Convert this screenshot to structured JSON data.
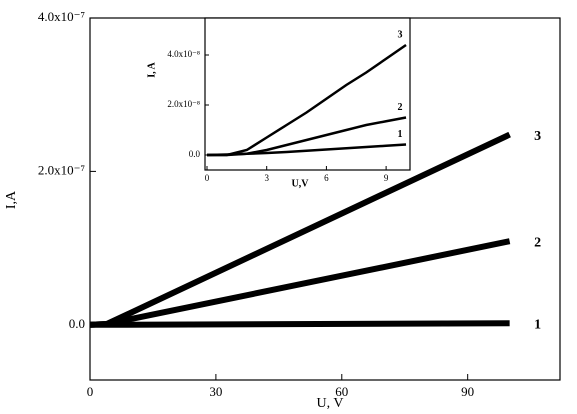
{
  "chart_data": [
    {
      "type": "line",
      "xlabel": "U, V",
      "ylabel": "I,A",
      "x": [
        0,
        4,
        100
      ],
      "series": [
        {
          "name": "3",
          "color": "#000000",
          "values": [
            0,
            1e-09,
            2.48e-07
          ]
        },
        {
          "name": "2",
          "color": "#000000",
          "values": [
            0,
            1e-09,
            1.09e-07
          ]
        },
        {
          "name": "1",
          "color": "#000000",
          "values": [
            0,
            0,
            2e-09
          ]
        }
      ],
      "xlim": [
        0,
        112
      ],
      "xticks": [
        0,
        30,
        60,
        90
      ],
      "ylim": [
        -7.2e-08,
        4e-07
      ],
      "yticks": [
        {
          "value": 0,
          "label": "0.0"
        },
        {
          "value": 2e-07,
          "label": "2.0x10⁻⁷"
        },
        {
          "value": 4e-07,
          "label": "4.0x10⁻⁷"
        }
      ]
    },
    {
      "type": "line",
      "xlabel": "U,V",
      "ylabel": "I, A",
      "x": [
        0,
        1,
        2,
        3,
        4,
        5,
        6,
        7,
        8,
        9,
        10
      ],
      "series": [
        {
          "name": "3",
          "color": "#000000",
          "values": [
            0,
            0,
            2e-09,
            7e-09,
            1.2e-08,
            1.7e-08,
            2.25e-08,
            2.8e-08,
            3.3e-08,
            3.85e-08,
            4.4e-08
          ]
        },
        {
          "name": "2",
          "color": "#000000",
          "values": [
            0,
            0,
            5e-10,
            2e-09,
            4e-09,
            6e-09,
            8e-09,
            1e-08,
            1.2e-08,
            1.35e-08,
            1.5e-08
          ]
        },
        {
          "name": "1",
          "color": "#000000",
          "values": [
            0,
            2e-10,
            5e-10,
            8e-10,
            1.2e-09,
            1.7e-09,
            2.2e-09,
            2.7e-09,
            3.2e-09,
            3.7e-09,
            4.2e-09
          ]
        }
      ],
      "xlim": [
        -0.1,
        10.2
      ],
      "xticks": [
        0,
        3,
        6,
        9
      ],
      "ylim": [
        -6e-09,
        5.48e-08
      ],
      "yticks": [
        {
          "value": 0,
          "label": "0.0"
        },
        {
          "value": 2e-08,
          "label": "2.0x10⁻⁸"
        },
        {
          "value": 4e-08,
          "label": "4.0x10⁻⁸"
        }
      ]
    }
  ]
}
